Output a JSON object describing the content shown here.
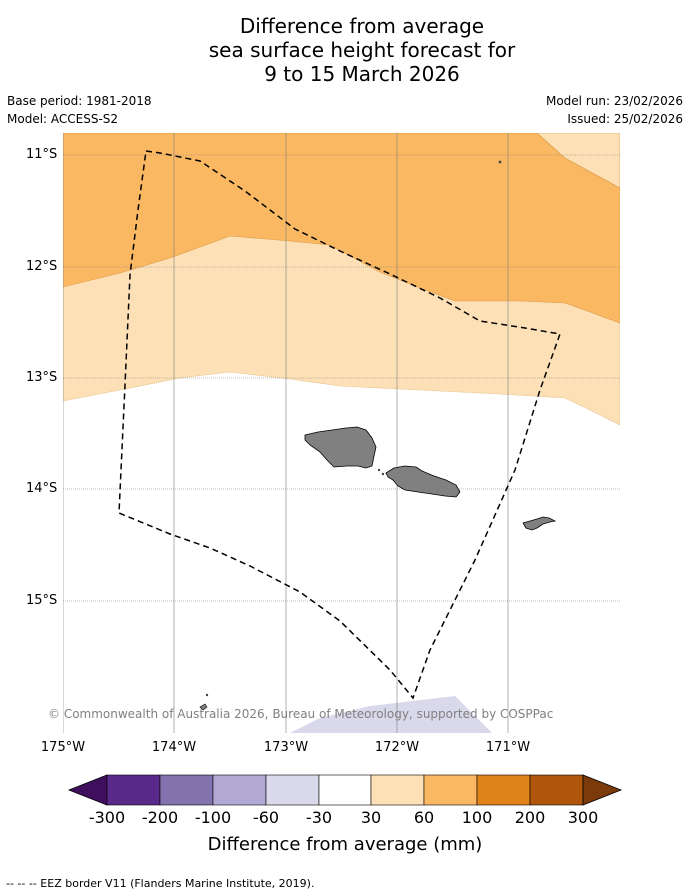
{
  "title": {
    "line1": "Difference from average",
    "line2": "sea surface height forecast for",
    "line3": "9 to 15 March 2026"
  },
  "meta": {
    "base_period": "Base period: 1981-2018",
    "model": "Model: ACCESS-S2",
    "model_run": "Model run: 23/02/2026",
    "issued": "Issued: 25/02/2026"
  },
  "map": {
    "lat_labels": [
      "11°S",
      "12°S",
      "13°S",
      "14°S",
      "15°S"
    ],
    "lon_labels": [
      "175°W",
      "174°W",
      "173°W",
      "172°W",
      "171°W"
    ],
    "copyright": "© Commonwealth of Australia 2026, Bureau of Meteorology, supported by COSPPac"
  },
  "colorbar": {
    "ticks": [
      "-300",
      "-200",
      "-100",
      "-60",
      "-30",
      "30",
      "60",
      "100",
      "200",
      "300"
    ],
    "colors": [
      "#3f0f5e",
      "#5a2a8a",
      "#8272ae",
      "#b1a8d3",
      "#d9d9eb",
      "#ffffff",
      "#fde0b6",
      "#fbb862",
      "#e0821a",
      "#b0560c",
      "#7a3a0a"
    ],
    "label": "Difference from average (mm)"
  },
  "legend": {
    "eez": "--  --  -- EEZ border V11 (Flanders Marine Institute, 2019)."
  }
}
